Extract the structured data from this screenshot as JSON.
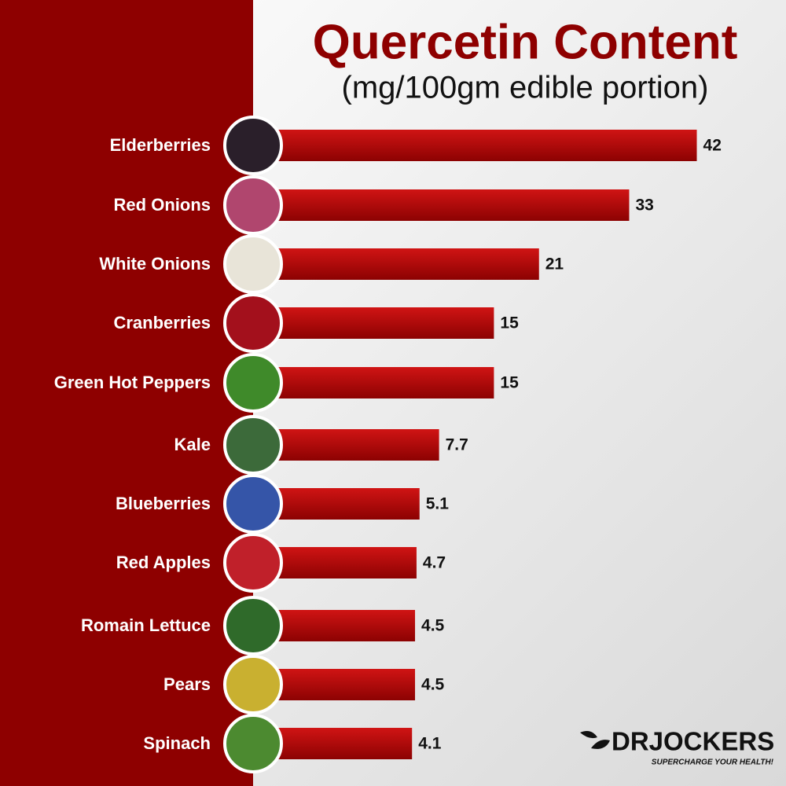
{
  "chart_data": {
    "type": "bar",
    "orientation": "horizontal",
    "title": "Quercetin Content",
    "subtitle": "(mg/100gm edible portion)",
    "categories": [
      "Elderberries",
      "Red Onions",
      "White Onions",
      "Cranberries",
      "Green Hot Peppers",
      "Kale",
      "Blueberries",
      "Red Apples",
      "Romain Lettuce",
      "Pears",
      "Spinach"
    ],
    "values": [
      42,
      33,
      21,
      15,
      15,
      7.7,
      5.1,
      4.7,
      4.5,
      4.5,
      4.1
    ],
    "color": "#b00a0a",
    "brand": "DRJOCKERS",
    "tagline": "SUPERCHARGE YOUR HEALTH!"
  }
}
